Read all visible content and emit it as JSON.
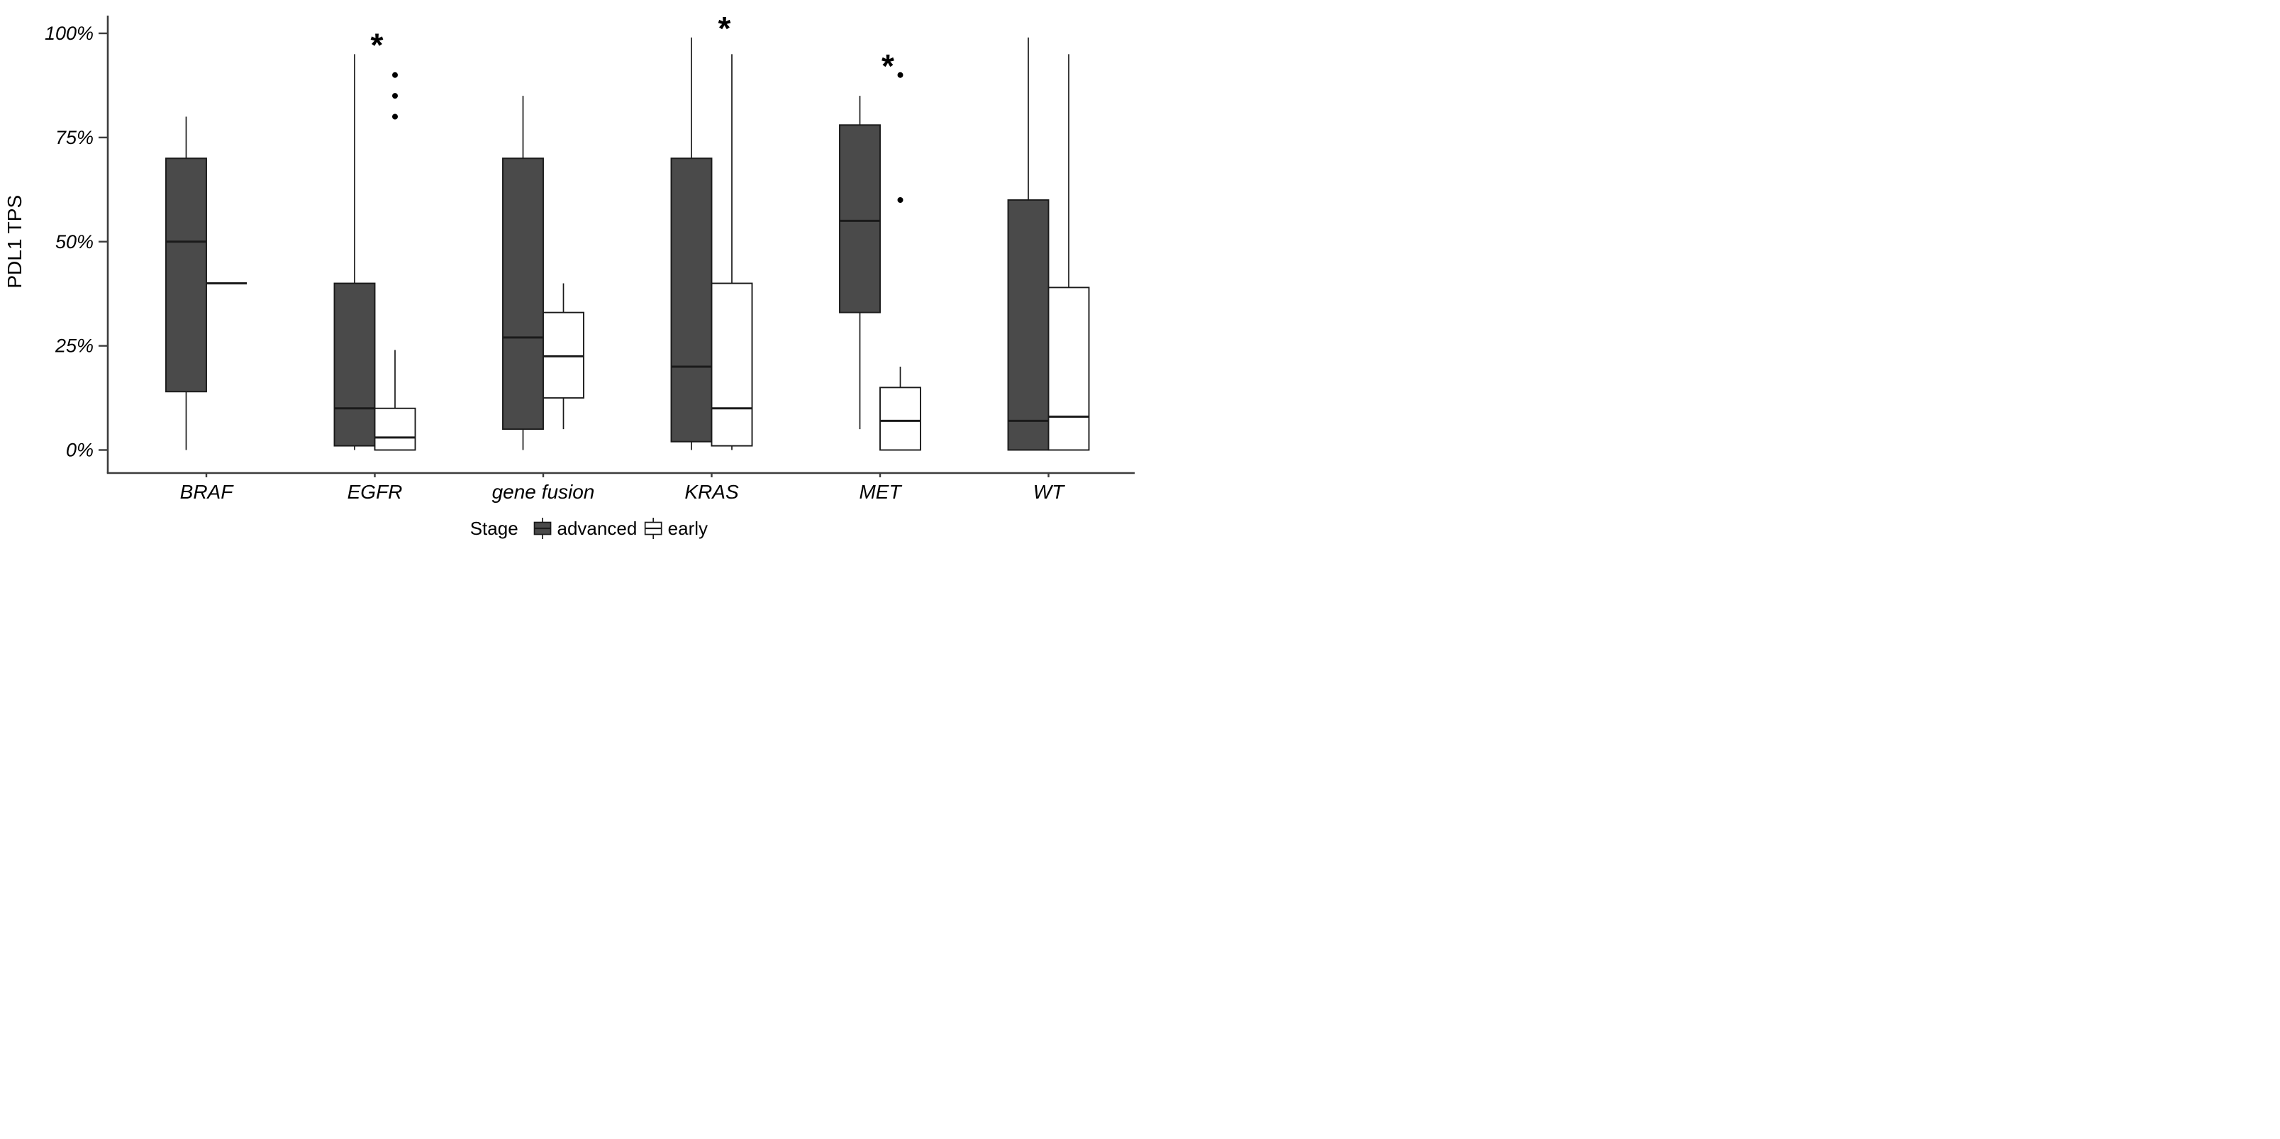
{
  "chart_data": {
    "type": "boxplot",
    "title": "",
    "xlabel": "",
    "ylabel": "PDL1 TPS",
    "ylim": [
      0,
      100
    ],
    "yticks": [
      0,
      25,
      50,
      75,
      100
    ],
    "ytick_labels": [
      "0%",
      "25%",
      "50%",
      "75%",
      "100%"
    ],
    "grid": false,
    "categories": [
      "BRAF",
      "EGFR",
      "gene fusion",
      "KRAS",
      "MET",
      "WT"
    ],
    "legend": {
      "title": "Stage",
      "position": "bottom",
      "entries": [
        {
          "label": "advanced",
          "fill": "#4a4a4a"
        },
        {
          "label": "early",
          "fill": "#ffffff"
        }
      ]
    },
    "colors": {
      "advanced_fill": "#4a4a4a",
      "early_fill": "#ffffff",
      "stroke": "#1a1a1a",
      "axis": "#3c3c3c"
    },
    "series": [
      {
        "name": "advanced",
        "fill": "#4a4a4a",
        "boxes": [
          {
            "category": "BRAF",
            "min": 0,
            "q1": 14,
            "median": 50,
            "q3": 70,
            "max": 80,
            "outliers": []
          },
          {
            "category": "EGFR",
            "min": 0,
            "q1": 1,
            "median": 10,
            "q3": 40,
            "max": 95,
            "outliers": []
          },
          {
            "category": "gene fusion",
            "min": 0,
            "q1": 5,
            "median": 27,
            "q3": 70,
            "max": 85,
            "outliers": []
          },
          {
            "category": "KRAS",
            "min": 0,
            "q1": 2,
            "median": 20,
            "q3": 70,
            "max": 99,
            "outliers": []
          },
          {
            "category": "MET",
            "min": 5,
            "q1": 33,
            "median": 55,
            "q3": 78,
            "max": 85,
            "outliers": []
          },
          {
            "category": "WT",
            "min": 0,
            "q1": 0,
            "median": 7,
            "q3": 60,
            "max": 99,
            "outliers": []
          }
        ]
      },
      {
        "name": "early",
        "fill": "#ffffff",
        "boxes": [
          {
            "category": "BRAF",
            "single_value": 40,
            "outliers": []
          },
          {
            "category": "EGFR",
            "min": 0,
            "q1": 0,
            "median": 3,
            "q3": 10,
            "max": 24,
            "outliers": [
              80,
              85,
              90
            ]
          },
          {
            "category": "gene fusion",
            "min": 5,
            "q1": 12.5,
            "median": 22.5,
            "q3": 33,
            "max": 40,
            "outliers": []
          },
          {
            "category": "KRAS",
            "min": 0,
            "q1": 1,
            "median": 10,
            "q3": 40,
            "max": 95,
            "outliers": []
          },
          {
            "category": "MET",
            "min": 0,
            "q1": 0,
            "median": 7,
            "q3": 15,
            "max": 20,
            "outliers": [
              60,
              90
            ]
          },
          {
            "category": "WT",
            "min": 0,
            "q1": 0,
            "median": 8,
            "q3": 39,
            "max": 95,
            "outliers": []
          }
        ]
      }
    ],
    "annotations": [
      {
        "type": "significance-asterisk",
        "text": "*",
        "category": "EGFR",
        "y": 97,
        "x_offset": 3
      },
      {
        "type": "significance-asterisk",
        "text": "*",
        "category": "KRAS",
        "y": 101,
        "x_offset": 18
      },
      {
        "type": "significance-asterisk",
        "text": "*",
        "category": "MET",
        "y": 92,
        "x_offset": 11
      }
    ]
  }
}
